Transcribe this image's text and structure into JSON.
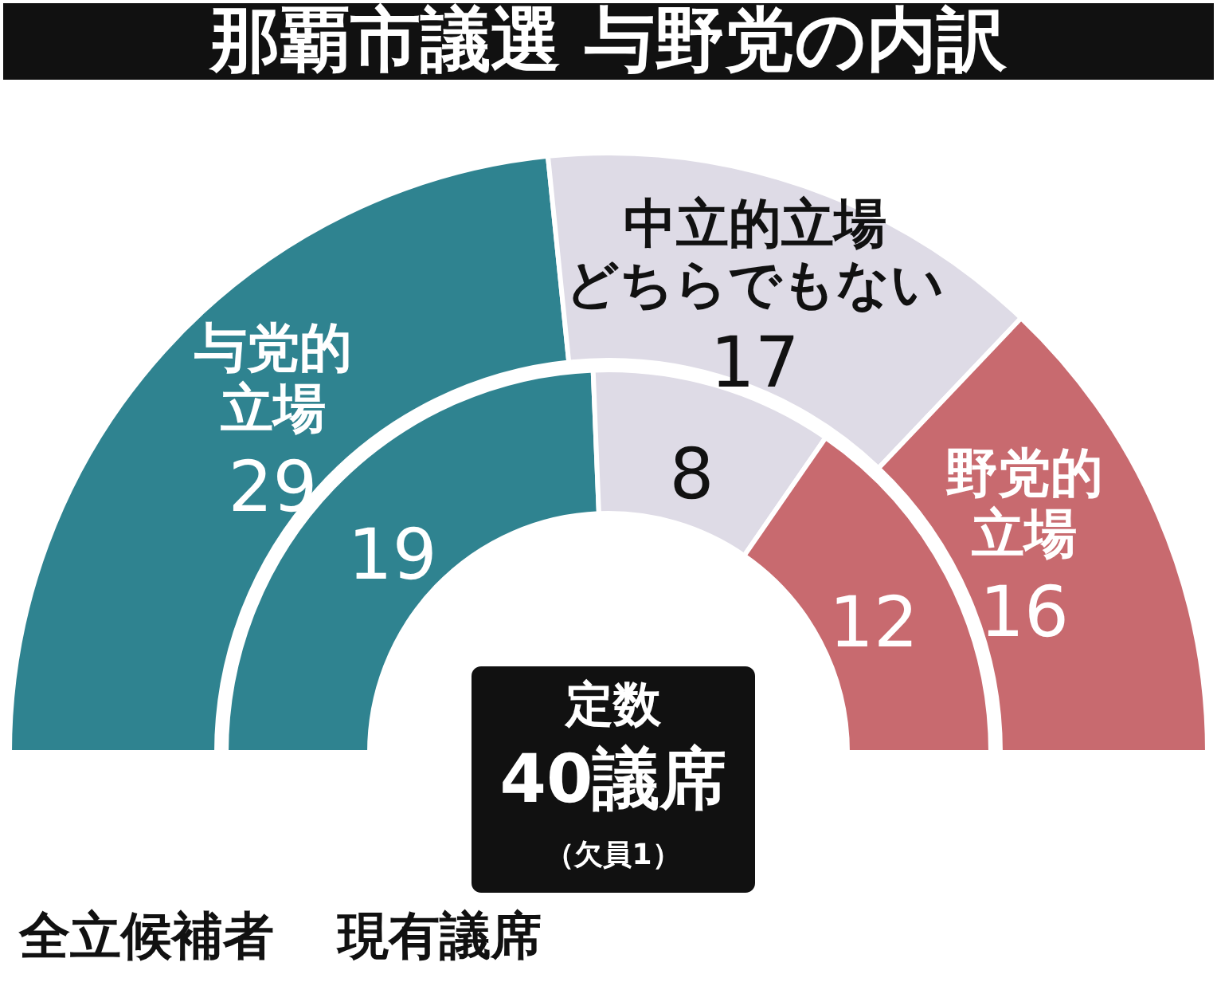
{
  "chart_data": {
    "type": "donut",
    "title": "那覇市議選 与野党の内訳",
    "categories": [
      "与党的立場",
      "中立的立場どちらでもない",
      "野党的立場"
    ],
    "colors": [
      "#2f8390",
      "#dedbe6",
      "#c86a6f"
    ],
    "series": [
      {
        "name": "現有議席",
        "values": [
          19,
          8,
          12
        ]
      },
      {
        "name": "全立候補者",
        "values": [
          29,
          17,
          16
        ]
      }
    ],
    "annotations": [
      "定数",
      "40議席",
      "（欠員1）"
    ],
    "data_labels": true
  }
}
